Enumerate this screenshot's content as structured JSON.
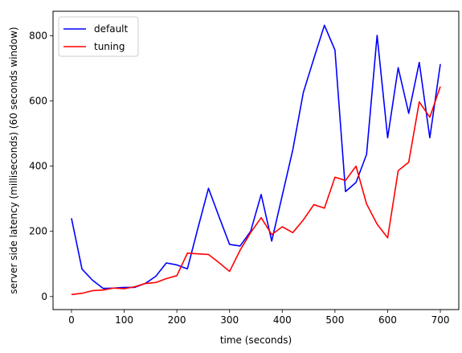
{
  "chart_data": {
    "type": "line",
    "xlabel": "time (seconds)",
    "ylabel": "server side latency (milliseconds) (60 seconds window)",
    "xlim": [
      -35,
      735
    ],
    "ylim": [
      -40,
      875
    ],
    "xticks": [
      0,
      100,
      200,
      300,
      400,
      500,
      600,
      700
    ],
    "yticks": [
      0,
      200,
      400,
      600,
      800
    ],
    "grid": false,
    "legend_position": "top-left",
    "series": [
      {
        "name": "default",
        "color": "#0000ff",
        "x": [
          0,
          20,
          40,
          60,
          80,
          100,
          120,
          140,
          160,
          180,
          200,
          220,
          240,
          260,
          280,
          300,
          320,
          340,
          360,
          380,
          400,
          420,
          440,
          460,
          480,
          500,
          520,
          540,
          560,
          580,
          600,
          620,
          640,
          660,
          680,
          700
        ],
        "y": [
          240,
          84,
          50,
          25,
          26,
          28,
          28,
          40,
          62,
          103,
          97,
          85,
          210,
          332,
          245,
          160,
          155,
          200,
          313,
          170,
          310,
          450,
          626,
          730,
          832,
          756,
          322,
          350,
          436,
          801,
          487,
          702,
          562,
          718,
          487,
          713
        ]
      },
      {
        "name": "tuning",
        "color": "#ff0000",
        "x": [
          0,
          20,
          40,
          60,
          80,
          100,
          120,
          140,
          160,
          180,
          200,
          220,
          240,
          260,
          280,
          300,
          320,
          340,
          360,
          380,
          400,
          420,
          440,
          460,
          480,
          500,
          520,
          540,
          560,
          580,
          600,
          620,
          640,
          660,
          680,
          700
        ],
        "y": [
          6,
          10,
          18,
          20,
          26,
          24,
          30,
          40,
          43,
          55,
          64,
          133,
          131,
          129,
          104,
          77,
          142,
          196,
          242,
          190,
          214,
          196,
          235,
          282,
          271,
          366,
          356,
          400,
          284,
          222,
          180,
          386,
          412,
          597,
          550,
          644
        ]
      }
    ]
  }
}
